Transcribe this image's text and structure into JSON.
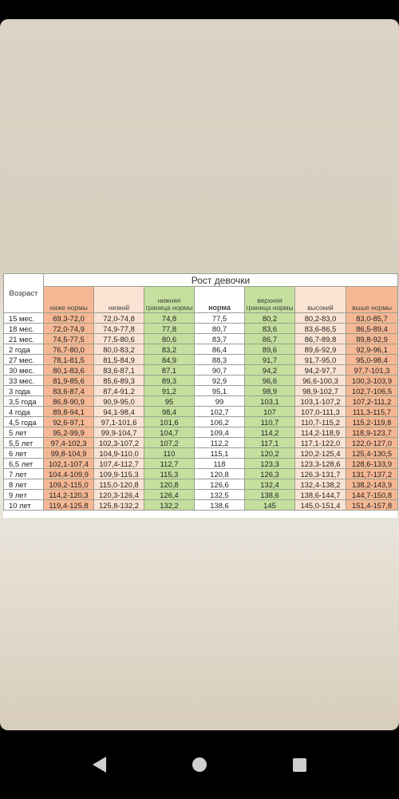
{
  "table": {
    "title": "Рост девочки",
    "age_header": "Возраст",
    "columns": [
      "ниже нормы",
      "низкий",
      "нижняя граница нормы",
      "норма",
      "верхняя граница нормы",
      "высокий",
      "выше нормы"
    ],
    "rows": [
      {
        "age": "15 мес.",
        "v": [
          "69,3-72,0",
          "72,0-74,8",
          "74,8",
          "77,5",
          "80,2",
          "80,2-83,0",
          "83,0-85,7"
        ]
      },
      {
        "age": "18 мес.",
        "v": [
          "72,0-74,9",
          "74,9-77,8",
          "77,8",
          "80,7",
          "83,6",
          "83,6-86,5",
          "86,5-89,4"
        ]
      },
      {
        "age": "21 мес.",
        "v": [
          "74,5-77,5",
          "77,5-80,6",
          "80,6",
          "83,7",
          "86,7",
          "86,7-89,8",
          "89,8-92,9"
        ]
      },
      {
        "age": "2 года",
        "v": [
          "76,7-80,0",
          "80,0-83,2",
          "83,2",
          "86,4",
          "89,6",
          "89,6-92,9",
          "92,9-96,1"
        ]
      },
      {
        "age": "27 мес.",
        "v": [
          "78,1-81,5",
          "81,5-84,9",
          "84,9",
          "88,3",
          "91,7",
          "91,7-95,0",
          "95,0-98,4"
        ]
      },
      {
        "age": "30 мес.",
        "v": [
          "80,1-83,6",
          "83,6-87,1",
          "87,1",
          "90,7",
          "94,2",
          "94,2-97,7",
          "97,7-101,3"
        ]
      },
      {
        "age": "33 мес.",
        "v": [
          "81,9-85,6",
          "85,6-89,3",
          "89,3",
          "92,9",
          "96,6",
          "96,6-100,3",
          "100,3-103,9"
        ]
      },
      {
        "age": "3 года",
        "v": [
          "83,6-87,4",
          "87,4-91,2",
          "91,2",
          "95,1",
          "98,9",
          "98,9-102,7",
          "102,7-106,5"
        ]
      },
      {
        "age": "3,5 года",
        "v": [
          "86,8-90,9",
          "90,9-95,0",
          "95",
          "99",
          "103,1",
          "103,1-107,2",
          "107,2-111,2"
        ]
      },
      {
        "age": "4 года",
        "v": [
          "89,8-94,1",
          "94,1-98,4",
          "98,4",
          "102,7",
          "107",
          "107,0-111,3",
          "111,3-115,7"
        ]
      },
      {
        "age": "4,5 года",
        "v": [
          "92,6-97,1",
          "97,1-101,6",
          "101,6",
          "106,2",
          "110,7",
          "110,7-115,2",
          "115,2-119,8"
        ]
      },
      {
        "age": "5 лет",
        "v": [
          "95,2-99,9",
          "99,9-104,7",
          "104,7",
          "109,4",
          "114,2",
          "114,2-118,9",
          "118,9-123,7"
        ]
      },
      {
        "age": "5,5 лет",
        "v": [
          "97,4-102,3",
          "102,3-107,2",
          "107,2",
          "112,2",
          "117,1",
          "117,1-122,0",
          "122,0-127,0"
        ]
      },
      {
        "age": "6 лет",
        "v": [
          "99,8-104,9",
          "104,9-110,0",
          "110",
          "115,1",
          "120,2",
          "120,2-125,4",
          "125,4-130,5"
        ]
      },
      {
        "age": "6,5 лет",
        "v": [
          "102,1-107,4",
          "107,4-112,7",
          "112,7",
          "118",
          "123,3",
          "123,3-128,6",
          "128,6-133,9"
        ]
      },
      {
        "age": "7 лет",
        "v": [
          "104,4-109,9",
          "109,9-115,3",
          "115,3",
          "120,8",
          "126,3",
          "126,3-131,7",
          "131,7-137,2"
        ]
      },
      {
        "age": "8 лет",
        "v": [
          "109,2-115,0",
          "115,0-120,8",
          "120,8",
          "126,6",
          "132,4",
          "132,4-138,2",
          "138,2-143,9"
        ]
      },
      {
        "age": "9 лет",
        "v": [
          "114,2-120,3",
          "120,3-126,4",
          "126,4",
          "132,5",
          "138,6",
          "138,6-144,7",
          "144,7-150,8"
        ]
      },
      {
        "age": "10 лет",
        "v": [
          "119,4-125,8",
          "125,8-132,2",
          "132,2",
          "138,6",
          "145",
          "145,0-151,4",
          "151,4-157,8"
        ]
      }
    ]
  },
  "nav": {
    "back_icon": "back-icon",
    "home_icon": "home-icon",
    "recents_icon": "recents-icon"
  },
  "colors": {
    "orange": "#f5b794",
    "light_orange": "#fbe3d3",
    "green": "#c4df9e"
  }
}
